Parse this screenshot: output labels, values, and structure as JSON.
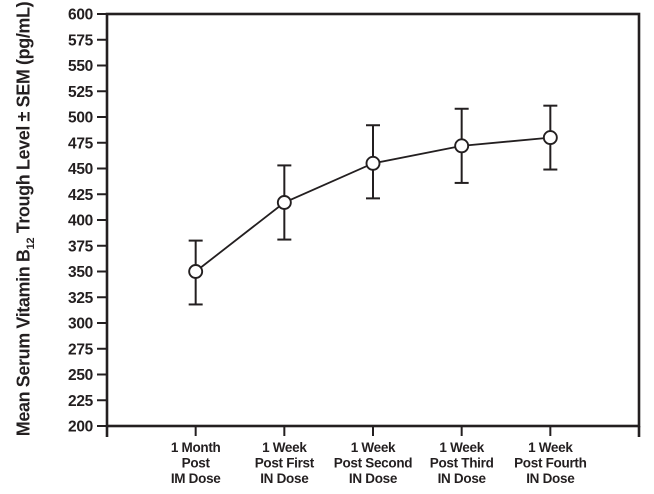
{
  "chart_data": {
    "type": "line",
    "title": "",
    "ylabel_parts": {
      "pre": "Mean Serum Vitamin B",
      "sub": "12",
      "post": " Trough Level ± SEM (pg/mL)"
    },
    "xlabel": "",
    "categories": [
      [
        "1 Month",
        "Post",
        "IM Dose"
      ],
      [
        "1 Week",
        "Post First",
        "IN Dose"
      ],
      [
        "1 Week",
        "Post Second",
        "IN Dose"
      ],
      [
        "1 Week",
        "Post Third",
        "IN Dose"
      ],
      [
        "1 Week",
        "Post Fourth",
        "IN Dose"
      ]
    ],
    "series": [
      {
        "name": "Mean serum vitamin B12 trough level",
        "values": [
          350,
          417,
          455,
          472,
          480
        ],
        "sem_lower": [
          318,
          381,
          421,
          436,
          449
        ],
        "sem_upper": [
          380,
          453,
          492,
          508,
          511
        ]
      }
    ],
    "ylim": [
      200,
      600
    ],
    "yticks": [
      200,
      225,
      250,
      275,
      300,
      325,
      350,
      375,
      400,
      425,
      450,
      475,
      500,
      525,
      550,
      575,
      600
    ],
    "grid": false,
    "legend": "none",
    "frame": true,
    "marker": "open-circle",
    "colors": {
      "line": "#231f20",
      "marker_fill": "#ffffff",
      "background": "#ffffff"
    }
  }
}
